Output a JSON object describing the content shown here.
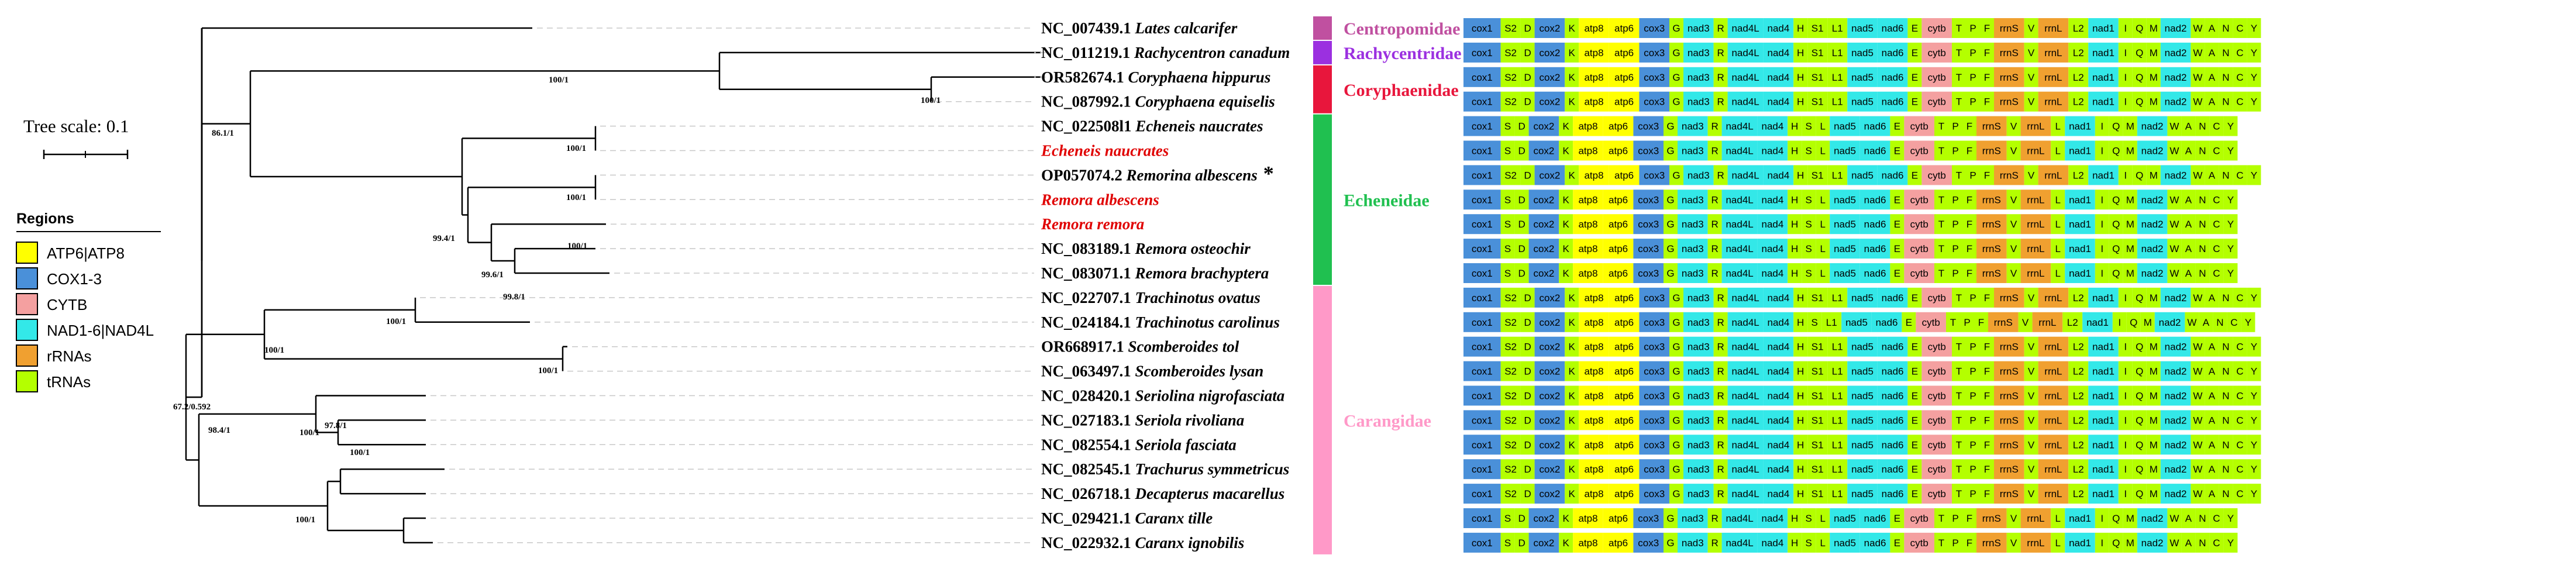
{
  "scale": {
    "label": "Tree scale: 0.1"
  },
  "legend": {
    "title": "Regions",
    "items": [
      {
        "label": "ATP6|ATP8",
        "color": "#ffff00"
      },
      {
        "label": "COX1-3",
        "color": "#4a90d9"
      },
      {
        "label": "CYTB",
        "color": "#f4a0a0"
      },
      {
        "label": "NAD1-6|NAD4L",
        "color": "#33e8e8"
      },
      {
        "label": "rRNAs",
        "color": "#f0a030"
      },
      {
        "label": "tRNAs",
        "color": "#b4ff00"
      }
    ]
  },
  "colors": {
    "atp": "#ffff00",
    "cox": "#4a90d9",
    "cytb": "#f4a0a0",
    "nad": "#33e8e8",
    "rrna": "#f0a030",
    "trna": "#b4ff00"
  },
  "taxa": [
    {
      "acc": "NC_007439.1",
      "sp": "Lates calcarifer",
      "cls": "s1"
    },
    {
      "acc": "NC_011219.1",
      "sp": "Rachycentron canadum",
      "cls": "s1"
    },
    {
      "acc": "OR582674.1",
      "sp": "Coryphaena hippurus",
      "cls": "s1"
    },
    {
      "acc": "NC_087992.1",
      "sp": "Coryphaena equiselis",
      "cls": "s1"
    },
    {
      "acc": "NC_022508l1",
      "sp": "Echeneis naucrates",
      "cls": "s2"
    },
    {
      "acc": "",
      "sp": "Echeneis naucrates",
      "cls": "s2"
    },
    {
      "acc": "OP057074.2",
      "sp": "Remorina albescens",
      "cls": "s1",
      "mark": "*"
    },
    {
      "acc": "",
      "sp": "Remora albescens",
      "cls": "s2"
    },
    {
      "acc": "",
      "sp": "Remora remora",
      "cls": "s2"
    },
    {
      "acc": "NC_083189.1",
      "sp": "Remora osteochir",
      "cls": "s2"
    },
    {
      "acc": "NC_083071.1",
      "sp": "Remora brachyptera",
      "cls": "s2"
    },
    {
      "acc": "NC_022707.1",
      "sp": "Trachinotus ovatus",
      "cls": "s1"
    },
    {
      "acc": "NC_024184.1",
      "sp": "Trachinotus carolinus",
      "cls": "s3"
    },
    {
      "acc": "OR668917.1",
      "sp": "Scomberoides tol",
      "cls": "s1"
    },
    {
      "acc": "NC_063497.1",
      "sp": "Scomberoides lysan",
      "cls": "s1"
    },
    {
      "acc": "NC_028420.1",
      "sp": "Seriolina nigrofasciata",
      "cls": "s1"
    },
    {
      "acc": "NC_027183.1",
      "sp": "Seriola rivoliana",
      "cls": "s1"
    },
    {
      "acc": "NC_082554.1",
      "sp": "Seriola fasciata",
      "cls": "s1"
    },
    {
      "acc": "NC_082545.1",
      "sp": "Trachurus symmetricus",
      "cls": "s1"
    },
    {
      "acc": "NC_026718.1",
      "sp": "Decapterus macarellus",
      "cls": "s1"
    },
    {
      "acc": "NC_029421.1",
      "sp": "Caranx tille",
      "cls": "s2"
    },
    {
      "acc": "NC_022932.1",
      "sp": "Caranx ignobilis",
      "cls": "s2"
    }
  ],
  "families": [
    {
      "name": "Centropomidae",
      "color": "#c050a0",
      "from": 0,
      "to": 0
    },
    {
      "name": "Rachycentridae",
      "color": "#9b30e0",
      "from": 1,
      "to": 1
    },
    {
      "name": "Coryphaenidae",
      "color": "#e8163c",
      "from": 2,
      "to": 3
    },
    {
      "name": "Echeneidae",
      "color": "#20c050",
      "from": 4,
      "to": 10
    },
    {
      "name": "Carangidae",
      "color": "#ff99c8",
      "from": 11,
      "to": 21
    }
  ],
  "supports": [
    "100/1",
    "100/1",
    "86.1/1",
    "100/1",
    "100/1",
    "100/1",
    "99.4/1",
    "99.6/1",
    "99.8/1",
    "100/1",
    "100/1",
    "100/1",
    "97.8/1",
    "100/1",
    "100/1",
    "98.4/1",
    "100/1",
    "67.2/0.592"
  ],
  "gene_classes": {
    "cox1": "cox",
    "S2": "trna",
    "S": "trna",
    "D": "trna",
    "cox2": "cox",
    "K": "trna",
    "atp8": "atp",
    "atp6": "atp",
    "cox3": "cox",
    "G": "trna",
    "nad3": "nad",
    "R": "trna",
    "nad4L": "nad",
    "nad4": "nad",
    "H": "trna",
    "S1": "trna",
    "L1": "trna",
    "L": "trna",
    "nad5": "nad",
    "nad6": "nad",
    "E": "trna",
    "cytb": "cytb",
    "T": "trna",
    "P": "trna",
    "F": "trna",
    "rrnS": "rrna",
    "V": "trna",
    "rrnL": "rrna",
    "L2": "trna",
    "nad1": "nad",
    "I": "trna",
    "Q": "trna",
    "M": "trna",
    "nad2": "nad",
    "W": "trna",
    "A": "trna",
    "N": "trna",
    "C": "trna",
    "Y": "trna"
  },
  "gene_orders": {
    "s1": [
      "cox1",
      "S2",
      "D",
      "cox2",
      "K",
      "atp8",
      "atp6",
      "cox3",
      "G",
      "nad3",
      "R",
      "nad4L",
      "nad4",
      "H",
      "S1",
      "L1",
      "nad5",
      "nad6",
      "E",
      "cytb",
      "T",
      "P",
      "F",
      "rrnS",
      "V",
      "rrnL",
      "L2",
      "nad1",
      "I",
      "Q",
      "M",
      "nad2",
      "W",
      "A",
      "N",
      "C",
      "Y"
    ],
    "s2": [
      "cox1",
      "S",
      "D",
      "cox2",
      "K",
      "atp8",
      "atp6",
      "cox3",
      "G",
      "nad3",
      "R",
      "nad4L",
      "nad4",
      "H",
      "S",
      "L",
      "nad5",
      "nad6",
      "E",
      "cytb",
      "T",
      "P",
      "F",
      "rrnS",
      "V",
      "rrnL",
      "L",
      "nad1",
      "I",
      "Q",
      "M",
      "nad2",
      "W",
      "A",
      "N",
      "C",
      "Y"
    ],
    "s3": [
      "cox1",
      "S2",
      "D",
      "cox2",
      "K",
      "atp8",
      "atp6",
      "cox3",
      "G",
      "nad3",
      "R",
      "nad4L",
      "nad4",
      "H",
      "S",
      "L1",
      "nad5",
      "nad6",
      "E",
      "cytb",
      "T",
      "P",
      "F",
      "rrnS",
      "V",
      "rrnL",
      "L2",
      "nad1",
      "I",
      "Q",
      "M",
      "nad2",
      "W",
      "A",
      "N",
      "C",
      "Y"
    ]
  }
}
